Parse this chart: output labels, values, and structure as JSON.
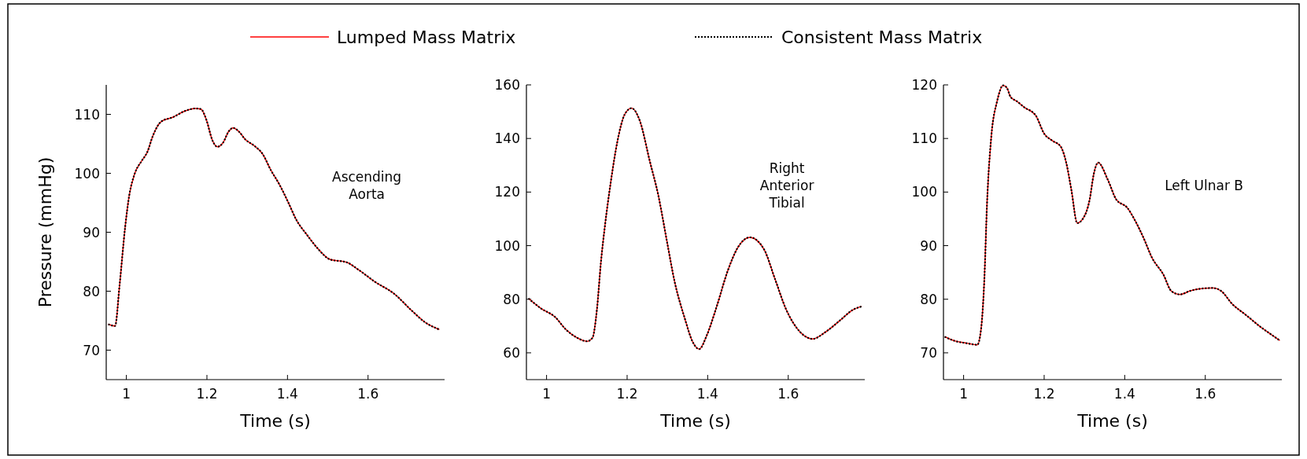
{
  "chart_data": [
    {
      "type": "line",
      "legend": "top",
      "ylabel": "Pressure (mmHg)",
      "xlabel": "Time (s)",
      "annotations": [
        "Ascending\nAorta"
      ],
      "xlim": [
        0.95,
        1.79
      ],
      "ylim": [
        65,
        115
      ],
      "xticks": [
        1,
        1.2,
        1.4,
        1.6
      ],
      "yticks": [
        70,
        80,
        90,
        100,
        110
      ],
      "x": [
        0.955,
        0.972,
        0.983,
        0.997,
        1.007,
        1.021,
        1.038,
        1.052,
        1.066,
        1.087,
        1.115,
        1.143,
        1.171,
        1.185,
        1.199,
        1.213,
        1.226,
        1.24,
        1.254,
        1.265,
        1.279,
        1.296,
        1.317,
        1.338,
        1.359,
        1.38,
        1.401,
        1.422,
        1.449,
        1.477,
        1.505,
        1.547,
        1.575,
        1.617,
        1.666,
        1.707,
        1.742,
        1.777
      ],
      "series": [
        {
          "name": "Lumped Mass Matrix",
          "color": "#ff0000",
          "line_style": "solid",
          "values": [
            74.4,
            74.1,
            80.9,
            90.9,
            96.2,
            100,
            102.1,
            103.6,
            106.4,
            108.8,
            109.5,
            110.5,
            111,
            110.9,
            109,
            105.7,
            104.5,
            105.2,
            107.1,
            107.7,
            107.1,
            105.7,
            104.7,
            103.3,
            100.5,
            98.1,
            95.2,
            92.1,
            89.5,
            87.1,
            85.4,
            84.9,
            83.7,
            81.6,
            79.5,
            76.8,
            74.7,
            73.5
          ]
        },
        {
          "name": "Consistent Mass Matrix",
          "color": "#000000",
          "line_style": "dotted",
          "values": [
            74.4,
            74.1,
            80.9,
            90.9,
            96.2,
            100,
            102.1,
            103.6,
            106.4,
            108.8,
            109.5,
            110.5,
            111,
            110.9,
            109,
            105.7,
            104.5,
            105.2,
            107.1,
            107.7,
            107.1,
            105.7,
            104.7,
            103.3,
            100.5,
            98.1,
            95.2,
            92.1,
            89.5,
            87.1,
            85.4,
            84.9,
            83.7,
            81.6,
            79.5,
            76.8,
            74.7,
            73.5
          ]
        }
      ]
    },
    {
      "type": "line",
      "xlabel": "Time (s)",
      "annotations": [
        "Right\nAnterior\nTibial"
      ],
      "xlim": [
        0.95,
        1.79
      ],
      "ylim": [
        50,
        160
      ],
      "xticks": [
        1,
        1.2,
        1.4,
        1.6
      ],
      "yticks": [
        60,
        80,
        100,
        120,
        140,
        160
      ],
      "x": [
        0.955,
        0.986,
        1.021,
        1.048,
        1.076,
        1.1,
        1.114,
        1.125,
        1.135,
        1.145,
        1.159,
        1.176,
        1.194,
        1.211,
        1.232,
        1.256,
        1.277,
        1.298,
        1.318,
        1.343,
        1.363,
        1.379,
        1.398,
        1.422,
        1.45,
        1.474,
        1.505,
        1.54,
        1.567,
        1.595,
        1.63,
        1.661,
        1.692,
        1.727,
        1.761,
        1.782
      ],
      "series": [
        {
          "color": "#ff0000",
          "line_style": "solid",
          "values": [
            80.3,
            76.6,
            73.4,
            68.7,
            65.6,
            64.3,
            65.6,
            76.1,
            93.9,
            107.5,
            123.3,
            139,
            149,
            151.3,
            146.4,
            131.7,
            119.1,
            102.3,
            86.5,
            72.9,
            64,
            61.4,
            66.6,
            77.1,
            90.7,
            99.1,
            103.1,
            98.6,
            87.6,
            76.1,
            67.7,
            65.2,
            67.7,
            71.9,
            76.1,
            77.3
          ]
        },
        {
          "color": "#000000",
          "line_style": "dotted",
          "values": [
            80.3,
            76.6,
            73.4,
            68.7,
            65.6,
            64.3,
            65.6,
            76.1,
            93.9,
            107.5,
            123.3,
            139,
            149,
            151.3,
            146.4,
            131.7,
            119.1,
            102.3,
            86.5,
            72.9,
            64,
            61.4,
            66.6,
            77.1,
            90.7,
            99.1,
            103.1,
            98.6,
            87.6,
            76.1,
            67.7,
            65.2,
            67.7,
            71.9,
            76.1,
            77.3
          ]
        }
      ]
    },
    {
      "type": "line",
      "xlabel": "Time (s)",
      "annotations": [
        "Left Ulnar B"
      ],
      "xlim": [
        0.95,
        1.79
      ],
      "ylim": [
        65,
        120
      ],
      "xticks": [
        1,
        1.2,
        1.4,
        1.6
      ],
      "yticks": [
        70,
        80,
        90,
        100,
        110,
        120
      ],
      "x": [
        0.953,
        0.979,
        1.007,
        1.034,
        1.043,
        1.052,
        1.058,
        1.069,
        1.083,
        1.098,
        1.107,
        1.117,
        1.131,
        1.151,
        1.179,
        1.2,
        1.22,
        1.241,
        1.255,
        1.268,
        1.282,
        1.296,
        1.313,
        1.323,
        1.334,
        1.358,
        1.379,
        1.406,
        1.427,
        1.447,
        1.468,
        1.496,
        1.516,
        1.537,
        1.564,
        1.592,
        1.619,
        1.64,
        1.667,
        1.702,
        1.736,
        1.764,
        1.785
      ],
      "series": [
        {
          "color": "#ff0000",
          "line_style": "solid",
          "values": [
            73,
            72.2,
            71.8,
            71.5,
            74.2,
            84.6,
            97.6,
            110.6,
            116.9,
            119.9,
            119.5,
            117.7,
            117,
            115.8,
            114.3,
            110.9,
            109.6,
            108.5,
            105.4,
            100.2,
            94.2,
            95,
            98.6,
            103.3,
            105.5,
            102.3,
            98.6,
            97.1,
            94.5,
            91.4,
            87.7,
            84.6,
            81.5,
            80.9,
            81.6,
            82,
            82.1,
            81.5,
            79.1,
            77,
            74.9,
            73.4,
            72.3
          ]
        },
        {
          "color": "#000000",
          "line_style": "dotted",
          "values": [
            73,
            72.2,
            71.8,
            71.5,
            74.2,
            84.6,
            97.6,
            110.6,
            116.9,
            119.9,
            119.5,
            117.7,
            117,
            115.8,
            114.3,
            110.9,
            109.6,
            108.5,
            105.4,
            100.2,
            94.2,
            95,
            98.6,
            103.3,
            105.5,
            102.3,
            98.6,
            97.1,
            94.5,
            91.4,
            87.7,
            84.6,
            81.5,
            80.9,
            81.6,
            82,
            82.1,
            81.5,
            79.1,
            77,
            74.9,
            73.4,
            72.3
          ]
        }
      ]
    }
  ]
}
